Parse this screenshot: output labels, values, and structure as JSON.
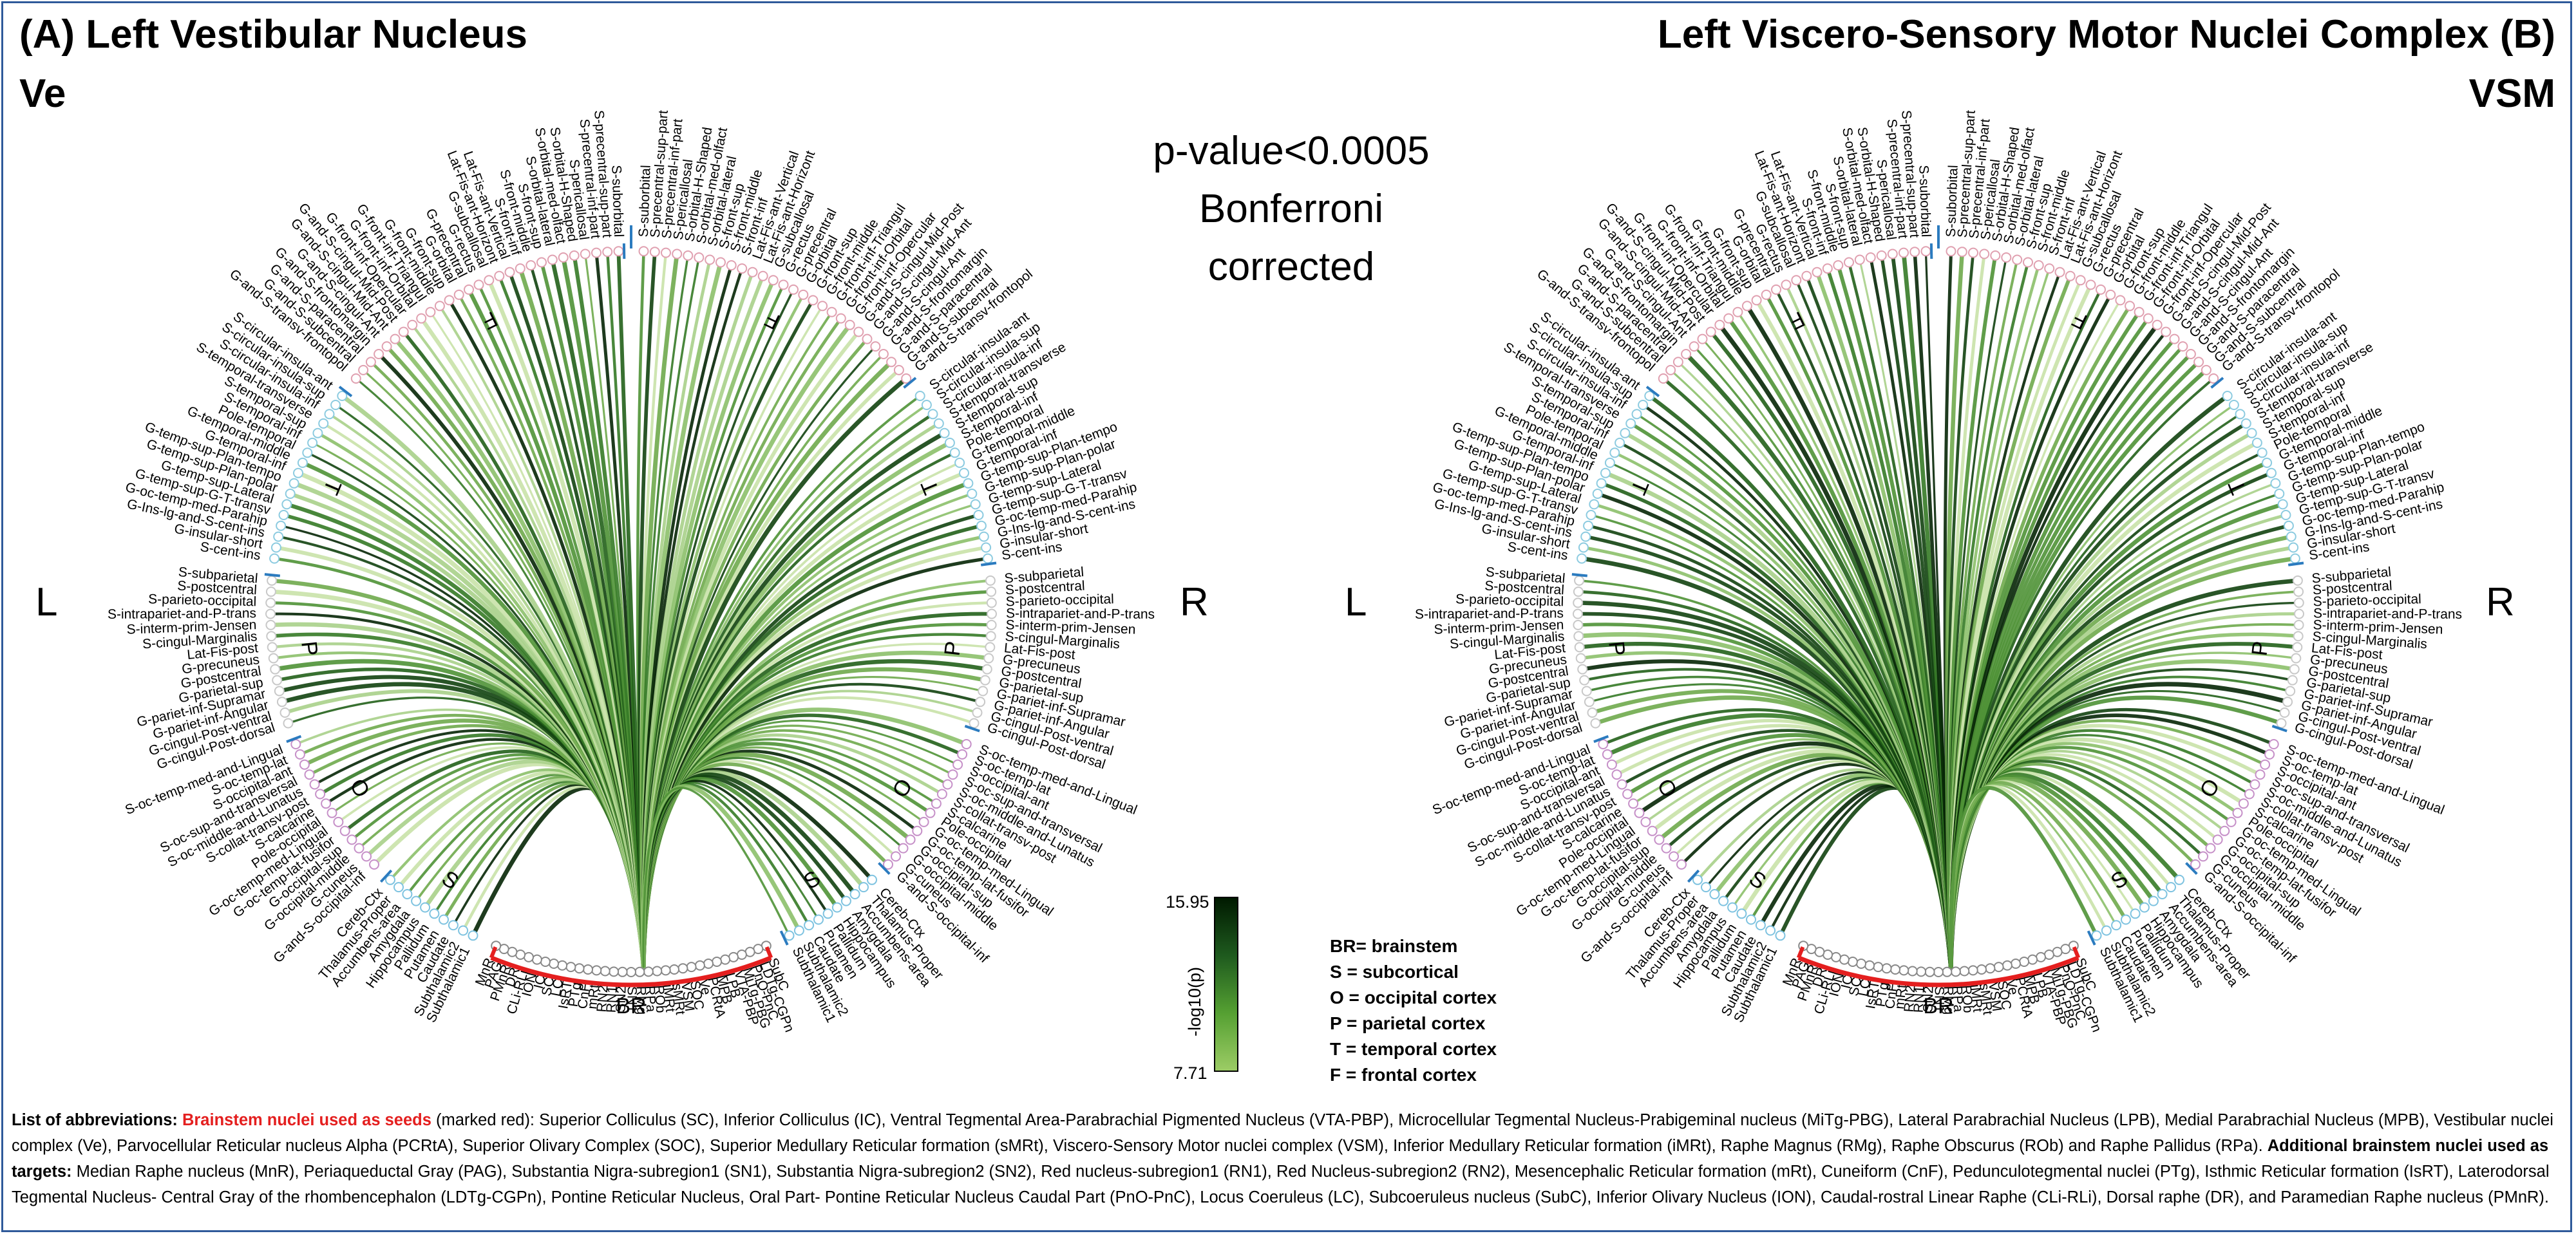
{
  "panels": [
    {
      "title": "(A) Left Vestibular Nucleus",
      "abbr": "Ve"
    },
    {
      "title": "Left Viscero-Sensory Motor Nuclei Complex (B)",
      "abbr": "VSM"
    }
  ],
  "side_labels": {
    "left": "L",
    "right": "R"
  },
  "pvalue_lines": [
    "p-value<0.0005",
    "Bonferroni",
    "corrected"
  ],
  "colorbar": {
    "max": "15.95",
    "min": "7.71",
    "label": "-log10(p)",
    "colors": [
      "#9ccc65",
      "#55a032",
      "#1e5a1e",
      "#001a00"
    ]
  },
  "legend_lines": [
    "BR= brainstem",
    "S = subcortical",
    "O = occipital cortex",
    "P = parietal cortex",
    "T = temporal cortex",
    "F = frontal cortex"
  ],
  "brainstem_label": "BR",
  "section_letters": {
    "left": [
      "S",
      "O",
      "P",
      "T",
      "F"
    ],
    "right": [
      "F",
      "T",
      "P",
      "O",
      "S"
    ]
  },
  "colors": {
    "brainstem_arc": "#e41f1f",
    "frame": "#2f5a9a",
    "tick": "#2b7bbf",
    "node_br": "#888888",
    "node_S": "#7ec3e0",
    "node_O": "#c690c8",
    "node_P": "#c8c8c8",
    "node_T": "#8ccbe0",
    "node_F": "#e0a0b0"
  },
  "regions": {
    "brainstem": [
      "SubC",
      "LDTg-CGPn",
      "PnO-PnC",
      "MiTg-PBG",
      "VTA-PBP",
      "LPB",
      "MPB",
      "PCRtA",
      "Ve",
      "SOC",
      "VSM",
      "sMRt",
      "iMRt",
      "ROb",
      "RPa",
      "RMg",
      "SN1",
      "SN2",
      "RN1",
      "RN2",
      "mRt",
      "CnF",
      "PTg",
      "IsRT",
      "LC",
      "SC",
      "IC",
      "ION",
      "CLi-RLi",
      "DR",
      "PMnR",
      "PAG",
      "MnR"
    ],
    "subcortical": [
      "Subthalamic1",
      "Subthalamic2",
      "Caudate",
      "Putamen",
      "Pallidum",
      "Hippocampus",
      "Amygdala",
      "Accumbens-area",
      "Thalamus-Proper",
      "Cereb-Ctx"
    ],
    "occipital": [
      "G-and-S-occipital-inf",
      "G-cuneus",
      "G-occipital-middle",
      "G-occipital-sup",
      "G-oc-temp-lat-fusifor",
      "G-oc-temp-med-Lingual",
      "Pole-occipital",
      "S-calcarine",
      "S-collat-transv-post",
      "S-oc-middle-and-Lunatus",
      "S-oc-sup-and-transversal",
      "S-occipital-ant",
      "S-oc-temp-lat",
      "S-oc-temp-med-and-Lingual"
    ],
    "parietal": [
      "G-cingul-Post-dorsal",
      "G-cingul-Post-ventral",
      "G-pariet-inf-Angular",
      "G-pariet-inf-Supramar",
      "G-parietal-sup",
      "G-postcentral",
      "G-precuneus",
      "Lat-Fis-post",
      "S-cingul-Marginalis",
      "S-interm-prim-Jensen",
      "S-intrapariet-and-P-trans",
      "S-parieto-occipital",
      "S-postcentral",
      "S-subparietal"
    ],
    "temporal": [
      "S-cent-ins",
      "G-insular-short",
      "G-Ins-lg-and-S-cent-ins",
      "G-oc-temp-med-Parahip",
      "G-temp-sup-G-T-transv",
      "G-temp-sup-Lateral",
      "G-temp-sup-Plan-polar",
      "G-temp-sup-Plan-tempo",
      "G-temporal-inf",
      "G-temporal-middle",
      "Pole-temporal",
      "S-temporal-inf",
      "S-temporal-sup",
      "S-temporal-transverse",
      "S-circular-insula-inf",
      "S-circular-insula-sup",
      "S-circular-insula-ant"
    ],
    "frontal": [
      "G-and-S-transv-frontopol",
      "G-and-S-subcentral",
      "G-and-S-paracentral",
      "G-and-S-frontomargin",
      "G-and-S-cingul-Ant",
      "G-and-S-cingul-Mid-Ant",
      "G-and-S-cingul-Mid-Post",
      "G-front-inf-Opercular",
      "G-front-inf-Orbital",
      "G-front-inf-Triangul",
      "G-front-middle",
      "G-front-sup",
      "G-orbital",
      "G-precentral",
      "G-rectus",
      "G-subcallosal",
      "Lat-Fis-ant-Horizont",
      "Lat-Fis-ant-Vertical",
      "S-front-inf",
      "S-front-middle",
      "S-front-sup",
      "S-orbital-lateral",
      "S-orbital-med-olfact",
      "S-orbital-H-Shaped",
      "S-pericallosal",
      "S-precentral-inf-part",
      "S-precentral-sup-part",
      "S-suborbital"
    ]
  },
  "abbreviations": {
    "seeds_label": "Brainstem nuclei used as seeds",
    "seeds_tail": "(marked red):  Superior Colliculus (SC), Inferior Colliculus (IC), Ventral Tegmental Area-Parabrachial Pigmented Nucleus (VTA-PBP), Microcellular Tegmental Nucleus-Prabigeminal nucleus (MiTg-PBG), Lateral Parabrachial Nucleus (LPB), Medial Parabrachial Nucleus (MPB), Vestibular nuclei complex (Ve), Parvocellular Reticular nucleus Alpha (PCRtA), Superior Olivary Complex (SOC), Superior Medullary Reticular formation (sMRt), Viscero-Sensory Motor nuclei complex (VSM), Inferior Medullary Reticular formation (iMRt), Raphe Magnus (RMg), Raphe Obscurus (ROb) and Raphe Pallidus (RPa).",
    "targets_label": "Additional brainstem nuclei used as targets:",
    "targets_tail": "Median Raphe nucleus (MnR), Periaqueductal Gray (PAG), Substantia Nigra-subregion1 (SN1), Substantia Nigra-subregion2 (SN2), Red nucleus-subregion1 (RN1), Red Nucleus-subregion2 (RN2), Mesencephalic Reticular formation (mRt), Cuneiform (CnF), Pedunculotegmental nuclei (PTg), Isthmic Reticular formation (IsRT), Laterodorsal Tegmental Nucleus- Central Gray of the rhombencephalon (LDTg-CGPn), Pontine Reticular Nucleus, Oral Part- Pontine Reticular Nucleus Caudal Part (PnO-PnC), Locus Coeruleus (LC), Subcoeruleus nucleus (SubC), Inferior Olivary Nucleus (ION), Caudal-rostral Linear Raphe (CLi-RLi), Dorsal raphe (DR), and Paramedian Raphe nucleus (PMnR).",
    "list_label": "List of abbreviations:"
  }
}
